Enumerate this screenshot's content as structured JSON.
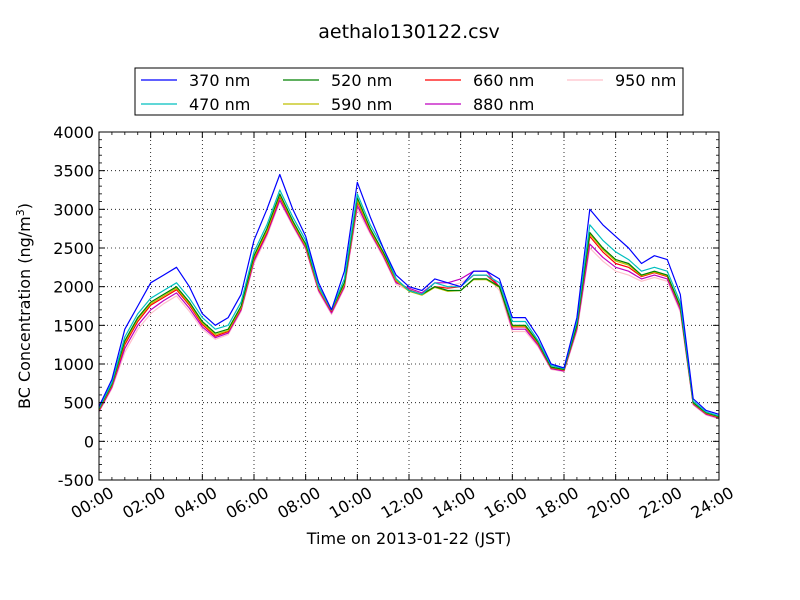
{
  "chart_data": {
    "type": "line",
    "title": "aethalo130122.csv",
    "xlabel": "Time on 2013-01-22 (JST)",
    "ylabel": "BC Concentration (ng/m",
    "ylabel_sup": "3",
    "ylabel_close": ")",
    "xlim_hours": [
      0,
      24
    ],
    "ylim": [
      -500,
      4000
    ],
    "x_ticks": [
      "00:00",
      "02:00",
      "04:00",
      "06:00",
      "08:00",
      "10:00",
      "12:00",
      "14:00",
      "16:00",
      "18:00",
      "20:00",
      "22:00",
      "24:00"
    ],
    "y_ticks": [
      "-500",
      "0",
      "500",
      "1000",
      "1500",
      "2000",
      "2500",
      "3000",
      "3500",
      "4000"
    ],
    "grid": true,
    "legend_position": "top-center",
    "x_hours": [
      0,
      0.5,
      1,
      1.5,
      2,
      2.5,
      3,
      3.5,
      4,
      4.5,
      5,
      5.5,
      6,
      6.5,
      7,
      7.5,
      8,
      8.5,
      9,
      9.5,
      10,
      10.5,
      11,
      11.5,
      12,
      12.5,
      13,
      13.5,
      14,
      14.5,
      15,
      15.5,
      16,
      16.5,
      17,
      17.5,
      18,
      18.5,
      19,
      19.5,
      20,
      20.5,
      21,
      21.5,
      22,
      22.5,
      23,
      23.5,
      24
    ],
    "series": [
      {
        "name": "370 nm",
        "color": "#0000ff",
        "values": [
          450,
          800,
          1450,
          1750,
          2050,
          2150,
          2250,
          2000,
          1650,
          1500,
          1600,
          1900,
          2600,
          3000,
          3450,
          3000,
          2650,
          2050,
          1700,
          2200,
          3350,
          2900,
          2500,
          2150,
          2000,
          1950,
          2100,
          2050,
          2000,
          2200,
          2200,
          2100,
          1600,
          1600,
          1350,
          1000,
          950,
          1600,
          3000,
          2800,
          2650,
          2500,
          2300,
          2400,
          2350,
          1900,
          550,
          400,
          350
        ]
      },
      {
        "name": "470 nm",
        "color": "#00bfbf",
        "values": [
          430,
          760,
          1350,
          1650,
          1850,
          1950,
          2050,
          1850,
          1600,
          1450,
          1500,
          1800,
          2450,
          2800,
          3250,
          2900,
          2600,
          2000,
          1700,
          2100,
          3200,
          2800,
          2500,
          2100,
          1950,
          1900,
          2050,
          2000,
          2000,
          2150,
          2150,
          2050,
          1550,
          1550,
          1300,
          980,
          940,
          1550,
          2800,
          2600,
          2450,
          2350,
          2200,
          2250,
          2200,
          1800,
          520,
          380,
          330
        ]
      },
      {
        "name": "520 nm",
        "color": "#008000",
        "values": [
          420,
          740,
          1300,
          1600,
          1800,
          1900,
          2000,
          1800,
          1550,
          1400,
          1450,
          1750,
          2400,
          2750,
          3200,
          2850,
          2550,
          2000,
          1700,
          2050,
          3150,
          2750,
          2450,
          2100,
          1950,
          1900,
          2000,
          1950,
          1950,
          2100,
          2100,
          2000,
          1500,
          1500,
          1280,
          960,
          930,
          1500,
          2700,
          2500,
          2350,
          2300,
          2150,
          2200,
          2150,
          1750,
          500,
          370,
          320
        ]
      },
      {
        "name": "590 nm",
        "color": "#bfbf00",
        "values": [
          410,
          730,
          1280,
          1580,
          1780,
          1880,
          1980,
          1780,
          1530,
          1380,
          1430,
          1730,
          2380,
          2720,
          3180,
          2830,
          2530,
          1980,
          1690,
          2030,
          3120,
          2730,
          2430,
          2080,
          1940,
          1890,
          1990,
          1940,
          1950,
          2090,
          2090,
          1990,
          1490,
          1490,
          1270,
          955,
          925,
          1490,
          2680,
          2480,
          2330,
          2280,
          2140,
          2190,
          2140,
          1740,
          495,
          365,
          315
        ]
      },
      {
        "name": "660 nm",
        "color": "#ff0000",
        "values": [
          400,
          720,
          1250,
          1550,
          1760,
          1860,
          1960,
          1760,
          1510,
          1360,
          1420,
          1720,
          2360,
          2700,
          3160,
          2820,
          2520,
          1970,
          1680,
          2020,
          3100,
          2720,
          2420,
          2070,
          1960,
          1900,
          2000,
          1980,
          2000,
          2150,
          2150,
          2000,
          1480,
          1480,
          1260,
          950,
          920,
          1480,
          2650,
          2450,
          2300,
          2250,
          2130,
          2180,
          2130,
          1730,
          490,
          360,
          310
        ]
      },
      {
        "name": "880 nm",
        "color": "#bf00bf",
        "values": [
          390,
          700,
          1200,
          1500,
          1700,
          1820,
          1920,
          1720,
          1480,
          1340,
          1400,
          1700,
          2330,
          2680,
          3120,
          2800,
          2500,
          1950,
          1660,
          2000,
          3050,
          2700,
          2400,
          2050,
          1980,
          1920,
          2050,
          2050,
          2100,
          2200,
          2200,
          2000,
          1450,
          1450,
          1240,
          940,
          910,
          1450,
          2550,
          2380,
          2250,
          2200,
          2100,
          2150,
          2100,
          1700,
          480,
          350,
          300
        ]
      },
      {
        "name": "950 nm",
        "color": "#ffc0cb",
        "values": [
          380,
          680,
          1150,
          1450,
          1650,
          1780,
          1880,
          1680,
          1450,
          1320,
          1380,
          1680,
          2300,
          2650,
          3100,
          2780,
          2480,
          1930,
          1640,
          1980,
          3000,
          2680,
          2380,
          2030,
          1950,
          1900,
          2000,
          2000,
          2050,
          2150,
          2150,
          1950,
          1420,
          1420,
          1220,
          930,
          900,
          1420,
          2500,
          2330,
          2200,
          2150,
          2070,
          2120,
          2070,
          1670,
          470,
          340,
          290
        ]
      }
    ]
  }
}
